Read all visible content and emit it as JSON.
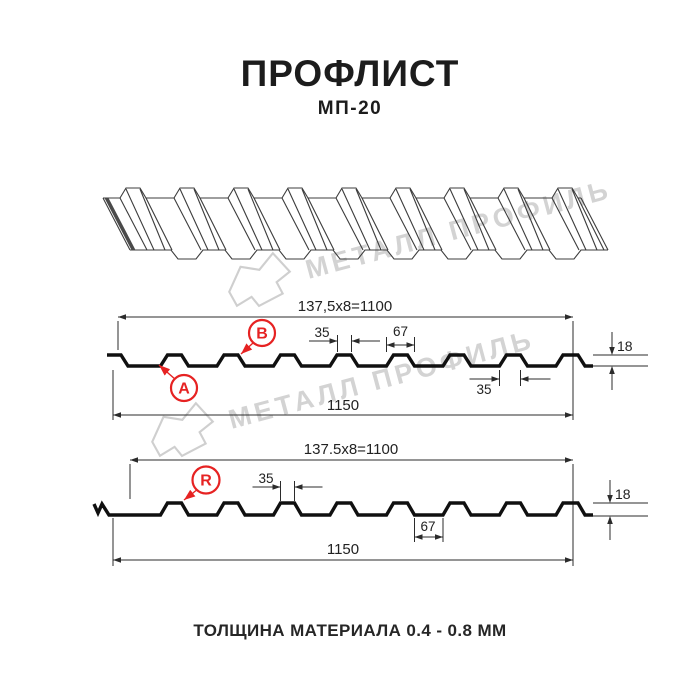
{
  "header": {
    "title": "ПРОФЛИСТ",
    "subtitle": "МП-20"
  },
  "footer": {
    "text": "ТОЛЩИНА МАТЕРИАЛА 0.4 - 0.8 ММ"
  },
  "watermark": {
    "text": "МЕТАЛЛ ПРОФИЛЬ",
    "logo": "metal-profil-logo"
  },
  "colors": {
    "accent_red": "#e62222",
    "drawing_line": "#101010",
    "dimension_line": "#2b2b2b",
    "watermark_gray": "#d3d3d3"
  },
  "diagram_top": {
    "coverage_width": "137,5x8=1100",
    "overall_width": "1150",
    "rib_top_width": "35",
    "rib_base_width": "67",
    "profile_height": "18",
    "rib_top_width_2": "35",
    "label_a": "A",
    "label_b": "B"
  },
  "diagram_bottom": {
    "coverage_width": "137.5x8=1100",
    "overall_width": "1150",
    "rib_top_width": "35",
    "valley_width": "67",
    "profile_height": "18",
    "label_r": "R"
  }
}
